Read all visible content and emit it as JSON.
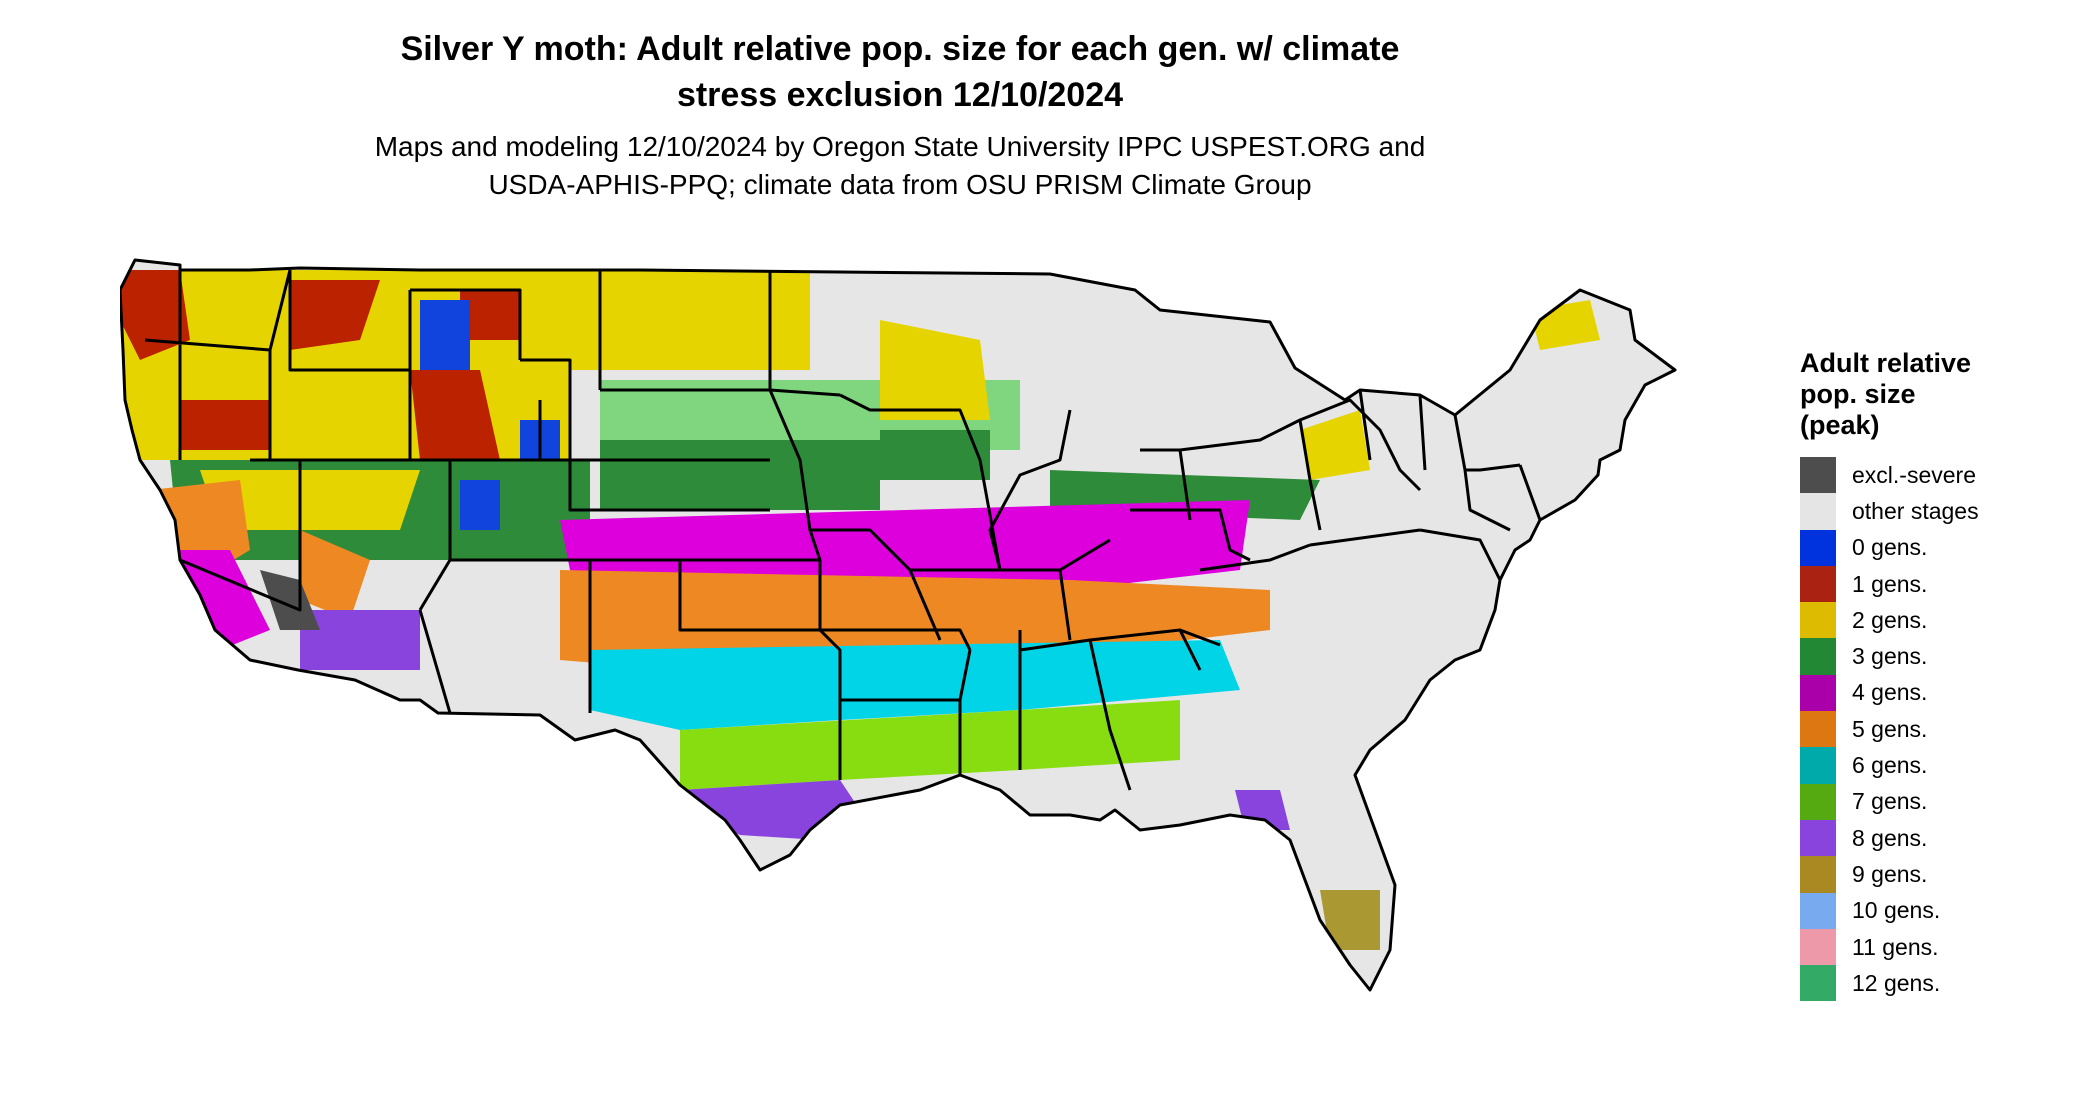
{
  "title_line1": "Silver Y moth: Adult relative pop. size for each gen. w/ climate",
  "title_line2": "stress exclusion 12/10/2024",
  "subtitle_line1": "Maps and modeling 12/10/2024 by Oregon State University IPPC USPEST.ORG and",
  "subtitle_line2": "USDA-APHIS-PPQ; climate data from OSU PRISM Climate Group",
  "legend": {
    "title_line1": "Adult relative",
    "title_line2": "pop. size",
    "title_line3": "(peak)",
    "items": [
      {
        "label": "excl.-severe",
        "color": "#4d4d4d"
      },
      {
        "label": "other stages",
        "color": "#e5e5e5"
      },
      {
        "label": "0 gens.",
        "color": "#0033dd"
      },
      {
        "label": "1 gens.",
        "color": "#aa2211"
      },
      {
        "label": "2 gens.",
        "color": "#ddbb00"
      },
      {
        "label": "3 gens.",
        "color": "#228833"
      },
      {
        "label": "4 gens.",
        "color": "#aa00aa"
      },
      {
        "label": "5 gens.",
        "color": "#dd7711"
      },
      {
        "label": "6 gens.",
        "color": "#00aaaa"
      },
      {
        "label": "7 gens.",
        "color": "#55aa11"
      },
      {
        "label": "8 gens.",
        "color": "#8844dd"
      },
      {
        "label": "9 gens.",
        "color": "#aa8822"
      },
      {
        "label": "10 gens.",
        "color": "#77aaee"
      },
      {
        "label": "11 gens.",
        "color": "#ee99aa"
      },
      {
        "label": "12 gens.",
        "color": "#33aa66"
      }
    ]
  },
  "map_colors": {
    "gray": "#e6e6e6",
    "yellow": "#e6d400",
    "red": "#bb2200",
    "blue": "#1144dd",
    "green": "#2e8b3a",
    "lightgreen": "#7fd67f",
    "magenta": "#dd00dd",
    "orange": "#ee8822",
    "cyan": "#00d4e6",
    "lime": "#88dd11",
    "purple": "#8844dd",
    "olive": "#aa9933",
    "darkgray": "#4d4d4d",
    "border": "#000000"
  }
}
